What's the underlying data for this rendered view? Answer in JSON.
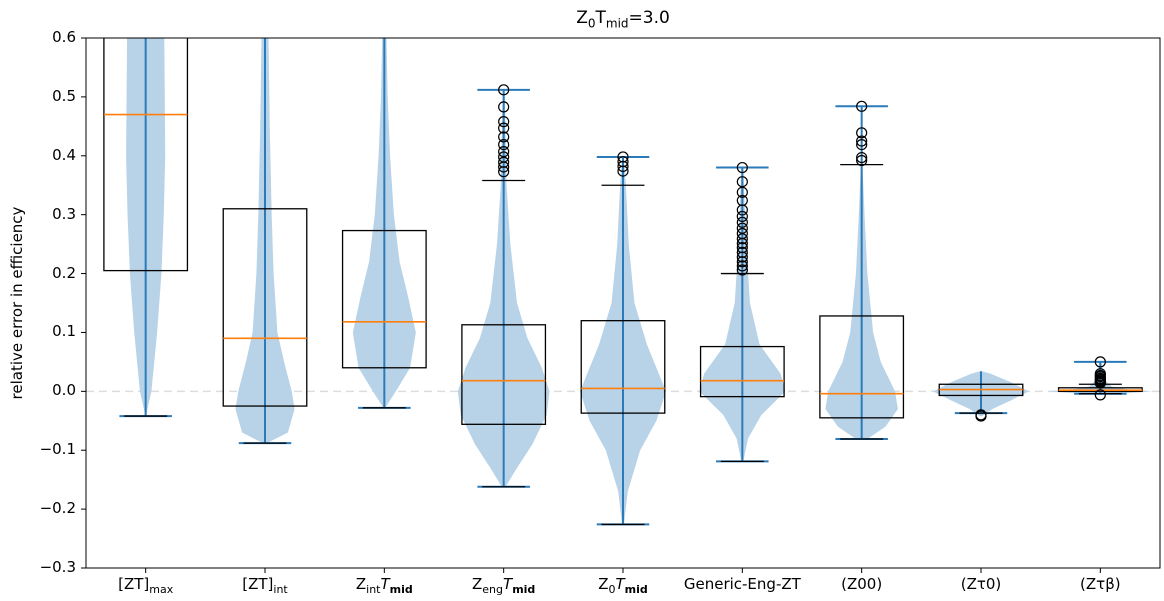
{
  "chart_data": {
    "type": "violin+box",
    "title": {
      "base": "Z",
      "sub1": "0",
      "mid": "T",
      "sub2": "mid",
      "tail": "=3.0"
    },
    "ylabel": "relative error in efficiency",
    "ylim": [
      -0.3,
      0.6
    ],
    "yticks": [
      "0.6",
      "0.5",
      "0.4",
      "0.3",
      "0.2",
      "0.1",
      "0.0",
      "−0.1",
      "−0.2",
      "−0.3"
    ],
    "ytick_values": [
      0.6,
      0.5,
      0.4,
      0.3,
      0.2,
      0.1,
      0.0,
      -0.1,
      -0.2,
      -0.3
    ],
    "zero_line": 0.0,
    "categories": [
      {
        "main": "[ZT]",
        "sub": "max",
        "tail": "",
        "italic": ""
      },
      {
        "main": "[ZT]",
        "sub": "int",
        "tail": "",
        "italic": ""
      },
      {
        "main": "Z",
        "sub": "int",
        "tail": "",
        "italic": "T",
        "sub2": "mid"
      },
      {
        "main": "Z",
        "sub": "eng",
        "tail": "",
        "italic": "T",
        "sub2": "mid"
      },
      {
        "main": "Z",
        "sub": "0",
        "tail": "",
        "italic": "T",
        "sub2": "mid"
      },
      {
        "main": "Generic-Eng-ZT",
        "sub": "",
        "tail": "",
        "italic": ""
      },
      {
        "main": "(Z00)",
        "sub": "",
        "tail": "",
        "italic": ""
      },
      {
        "main": "(Zτ0)",
        "sub": "",
        "tail": "",
        "italic": ""
      },
      {
        "main": "(Zτβ)",
        "sub": "",
        "tail": "",
        "italic": ""
      }
    ],
    "series": [
      {
        "q1": 0.205,
        "median": 0.47,
        "q3": 0.62,
        "whisker_low": -0.042,
        "whisker_high": 0.62,
        "cap_high": null,
        "outliers": [],
        "violin": [
          [
            -0.042,
            0.002
          ],
          [
            0.0,
            0.06
          ],
          [
            0.1,
            0.12
          ],
          [
            0.2,
            0.165
          ],
          [
            0.3,
            0.19
          ],
          [
            0.4,
            0.205
          ],
          [
            0.5,
            0.2
          ],
          [
            0.6,
            0.195
          ],
          [
            0.62,
            0.19
          ]
        ]
      },
      {
        "q1": -0.025,
        "median": 0.09,
        "q3": 0.31,
        "whisker_low": -0.088,
        "whisker_high": 0.62,
        "cap_high": null,
        "outliers": [],
        "violin": [
          [
            -0.088,
            0.02
          ],
          [
            -0.07,
            0.24
          ],
          [
            -0.03,
            0.31
          ],
          [
            0.0,
            0.28
          ],
          [
            0.05,
            0.2
          ],
          [
            0.1,
            0.13
          ],
          [
            0.2,
            0.09
          ],
          [
            0.3,
            0.07
          ],
          [
            0.45,
            0.05
          ],
          [
            0.62,
            0.035
          ]
        ]
      },
      {
        "q1": 0.04,
        "median": 0.118,
        "q3": 0.273,
        "whisker_low": -0.028,
        "whisker_high": 0.62,
        "cap_high": null,
        "outliers": [],
        "violin": [
          [
            -0.028,
            0.01
          ],
          [
            0.0,
            0.12
          ],
          [
            0.04,
            0.27
          ],
          [
            0.1,
            0.33
          ],
          [
            0.16,
            0.25
          ],
          [
            0.22,
            0.16
          ],
          [
            0.3,
            0.1
          ],
          [
            0.4,
            0.06
          ],
          [
            0.5,
            0.035
          ],
          [
            0.62,
            0.02
          ]
        ]
      },
      {
        "q1": -0.056,
        "median": 0.018,
        "q3": 0.113,
        "whisker_low": -0.162,
        "whisker_high": 0.358,
        "cap_high": 0.512,
        "outliers": [
          0.512,
          0.483,
          0.458,
          0.447,
          0.432,
          0.419,
          0.407,
          0.398,
          0.389,
          0.381,
          0.373
        ],
        "violin": [
          [
            -0.162,
            0.02
          ],
          [
            -0.13,
            0.14
          ],
          [
            -0.09,
            0.3
          ],
          [
            -0.04,
            0.45
          ],
          [
            0.0,
            0.48
          ],
          [
            0.04,
            0.4
          ],
          [
            0.09,
            0.25
          ],
          [
            0.15,
            0.14
          ],
          [
            0.25,
            0.07
          ],
          [
            0.35,
            0.03
          ],
          [
            0.51,
            0.01
          ]
        ]
      },
      {
        "q1": -0.037,
        "median": 0.005,
        "q3": 0.12,
        "whisker_low": -0.226,
        "whisker_high": 0.35,
        "cap_high": 0.398,
        "outliers": [
          0.398,
          0.39,
          0.382,
          0.374
        ],
        "violin": [
          [
            -0.226,
            0.01
          ],
          [
            -0.17,
            0.05
          ],
          [
            -0.1,
            0.18
          ],
          [
            -0.05,
            0.35
          ],
          [
            0.0,
            0.45
          ],
          [
            0.04,
            0.35
          ],
          [
            0.08,
            0.25
          ],
          [
            0.15,
            0.12
          ],
          [
            0.25,
            0.06
          ],
          [
            0.35,
            0.03
          ],
          [
            0.398,
            0.01
          ]
        ]
      },
      {
        "q1": -0.009,
        "median": 0.018,
        "q3": 0.076,
        "whisker_low": -0.119,
        "whisker_high": 0.2,
        "cap_high": 0.38,
        "outliers": [
          0.38,
          0.356,
          0.338,
          0.324,
          0.308,
          0.297,
          0.287,
          0.277,
          0.268,
          0.259,
          0.251,
          0.244,
          0.236,
          0.228,
          0.22,
          0.213,
          0.206
        ],
        "violin": [
          [
            -0.119,
            0.01
          ],
          [
            -0.08,
            0.06
          ],
          [
            -0.04,
            0.2
          ],
          [
            0.0,
            0.45
          ],
          [
            0.03,
            0.4
          ],
          [
            0.08,
            0.18
          ],
          [
            0.15,
            0.08
          ],
          [
            0.25,
            0.04
          ],
          [
            0.38,
            0.01
          ]
        ]
      },
      {
        "q1": -0.045,
        "median": -0.004,
        "q3": 0.128,
        "whisker_low": -0.081,
        "whisker_high": 0.385,
        "cap_high": 0.484,
        "outliers": [
          0.484,
          0.439,
          0.425,
          0.419,
          0.397,
          0.392
        ],
        "violin": [
          [
            -0.081,
            0.06
          ],
          [
            -0.06,
            0.25
          ],
          [
            -0.03,
            0.38
          ],
          [
            0.0,
            0.35
          ],
          [
            0.05,
            0.2
          ],
          [
            0.1,
            0.12
          ],
          [
            0.2,
            0.06
          ],
          [
            0.3,
            0.03
          ],
          [
            0.38,
            0.01
          ]
        ]
      },
      {
        "q1": -0.007,
        "median": 0.003,
        "q3": 0.012,
        "whisker_low": -0.037,
        "whisker_high": 0.034,
        "cap_high": null,
        "outliers": [
          -0.04,
          -0.042
        ],
        "violin": [
          [
            -0.042,
            0.01
          ],
          [
            -0.03,
            0.12
          ],
          [
            -0.015,
            0.32
          ],
          [
            0.0,
            0.5
          ],
          [
            0.015,
            0.32
          ],
          [
            0.03,
            0.1
          ],
          [
            0.034,
            0.01
          ]
        ]
      },
      {
        "q1": 0.0,
        "median": 0.002,
        "q3": 0.006,
        "whisker_low": -0.004,
        "whisker_high": 0.012,
        "cap_high": 0.05,
        "outliers": [
          0.05,
          0.03,
          0.027,
          0.025,
          0.022,
          0.02,
          0.018,
          0.016,
          0.014,
          -0.006
        ],
        "violin": [
          [
            -0.006,
            0.05
          ],
          [
            -0.003,
            0.3
          ],
          [
            0.0,
            0.55
          ],
          [
            0.003,
            0.3
          ],
          [
            0.008,
            0.12
          ],
          [
            0.02,
            0.04
          ],
          [
            0.05,
            0.01
          ]
        ]
      }
    ],
    "colors": {
      "violin": "#b8d3e8",
      "line": "#2b7bba",
      "median": "#ff7f0e",
      "box": "#000000",
      "zero": "#dddddd"
    }
  }
}
